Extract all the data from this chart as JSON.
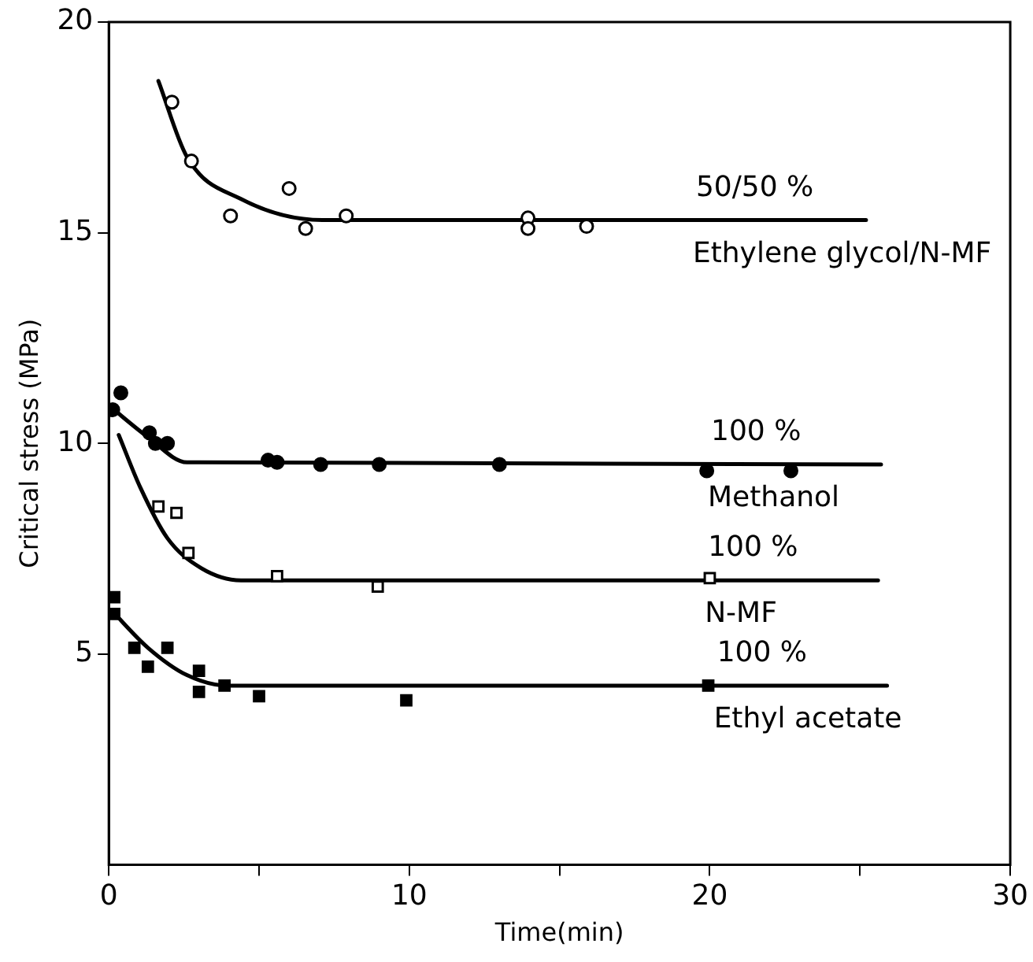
{
  "chart_data": {
    "type": "scatter",
    "xlabel": "Time(min)",
    "ylabel": "Critical stress (MPa)",
    "xlim": [
      0,
      30
    ],
    "xticks": [
      0,
      {
        "value": 5,
        "label": null
      },
      10,
      {
        "value": 15,
        "label": null
      },
      20,
      {
        "value": 25,
        "label": null
      },
      30
    ],
    "ylim": [
      0,
      20
    ],
    "yticks": [
      5,
      10,
      15,
      20
    ],
    "grid": false,
    "legend": false,
    "series": [
      {
        "marker": "circle",
        "color": "#ffffff",
        "x": [
          2.1,
          2.75,
          4.05,
          6.0,
          6.55,
          7.9,
          13.95,
          13.95,
          15.9
        ],
        "values": [
          18.1,
          16.7,
          15.4,
          16.05,
          15.1,
          15.4,
          15.35,
          15.1,
          15.15
        ]
      },
      {
        "type": "line",
        "marker": "none",
        "color": "#000000",
        "x": [
          1.65,
          2.6,
          4.4,
          7.1,
          25.2
        ],
        "values": [
          18.6,
          16.8,
          15.8,
          15.3,
          15.3
        ]
      },
      {
        "marker": "circle",
        "color": "#000000",
        "x": [
          0.13,
          0.4,
          1.35,
          1.55,
          1.95,
          5.3,
          5.6,
          7.05,
          9.0,
          13.0,
          19.9,
          22.7
        ],
        "values": [
          10.8,
          11.2,
          10.25,
          10.0,
          10.0,
          9.6,
          9.55,
          9.5,
          9.5,
          9.5,
          9.35,
          9.35
        ]
      },
      {
        "type": "line",
        "marker": "none",
        "color": "#000000",
        "x": [
          0,
          1.3,
          2.6,
          25.7
        ],
        "values": [
          10.9,
          10.15,
          9.55,
          9.5
        ]
      },
      {
        "marker": "square",
        "color": "#ffffff",
        "x": [
          1.65,
          2.25,
          2.65,
          5.6,
          8.95,
          20.0
        ],
        "values": [
          8.5,
          8.35,
          7.4,
          6.85,
          6.6,
          6.8
        ]
      },
      {
        "type": "line",
        "marker": "none",
        "color": "#000000",
        "x": [
          0.33,
          1.05,
          1.95,
          3.05,
          4.4,
          25.6
        ],
        "values": [
          10.2,
          8.95,
          7.75,
          7.05,
          6.75,
          6.75
        ]
      },
      {
        "marker": "square",
        "color": "#000000",
        "x": [
          0.18,
          0.18,
          0.85,
          1.3,
          1.95,
          3.0,
          3.0,
          3.85,
          5.0,
          9.9,
          19.95
        ],
        "values": [
          6.35,
          5.95,
          5.15,
          4.7,
          5.15,
          4.6,
          4.1,
          4.25,
          4.0,
          3.9,
          4.25
        ]
      },
      {
        "type": "line",
        "marker": "none",
        "color": "#000000",
        "x": [
          0.07,
          1.3,
          2.6,
          3.95,
          25.9
        ],
        "values": [
          6.05,
          5.15,
          4.5,
          4.25,
          4.25
        ]
      }
    ],
    "annotations": [
      "50/50 %",
      "Ethylene glycol/N-MF",
      "100 %",
      "Methanol",
      "100 %",
      "N-MF",
      "100 %",
      "Ethyl acetate"
    ]
  }
}
